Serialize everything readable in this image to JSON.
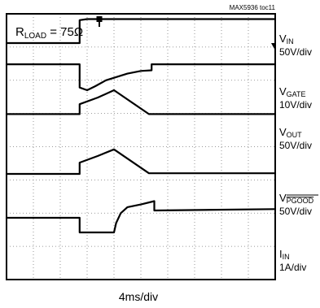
{
  "figure_id": "MAX5936 toc11",
  "load_label": {
    "main": "R",
    "sub": "LOAD",
    "rest": " = 75Ω"
  },
  "xlabel": "4ms/div",
  "chart_data": {
    "type": "line",
    "grid": true,
    "x_divisions": 10,
    "y_divisions": 8,
    "x_unit_per_div": "4ms/div",
    "series": [
      {
        "label_main": "V",
        "label_sub": "IN",
        "label_overline": false,
        "scale": "50V/div",
        "points": [
          [
            0,
            0.88
          ],
          [
            2.72,
            0.88
          ],
          [
            2.72,
            0.19
          ],
          [
            3.0,
            0.16
          ],
          [
            10,
            0.16
          ]
        ]
      },
      {
        "label_main": "V",
        "label_sub": "GATE",
        "label_overline": false,
        "scale": "10V/div",
        "points": [
          [
            0,
            1.52
          ],
          [
            2.72,
            1.52
          ],
          [
            2.72,
            2.22
          ],
          [
            3.0,
            2.3
          ],
          [
            3.3,
            2.18
          ],
          [
            3.7,
            2.0
          ],
          [
            4.1,
            1.9
          ],
          [
            4.5,
            1.8
          ],
          [
            5.0,
            1.72
          ],
          [
            5.4,
            1.7
          ],
          [
            5.4,
            1.52
          ],
          [
            10,
            1.52
          ]
        ]
      },
      {
        "label_main": "V",
        "label_sub": "OUT",
        "label_overline": false,
        "scale": "50V/div",
        "points": [
          [
            0,
            3.02
          ],
          [
            2.72,
            3.02
          ],
          [
            2.72,
            2.72
          ],
          [
            3.4,
            2.52
          ],
          [
            4.0,
            2.3
          ],
          [
            5.3,
            3.02
          ],
          [
            10,
            3.02
          ]
        ]
      },
      {
        "label_main": "V",
        "label_sub": "PGOOD",
        "label_overline": true,
        "scale": "50V/div",
        "points": [
          [
            0,
            4.82
          ],
          [
            2.72,
            4.82
          ],
          [
            2.72,
            4.48
          ],
          [
            3.4,
            4.28
          ],
          [
            4.0,
            4.08
          ],
          [
            5.3,
            4.8
          ],
          [
            10,
            4.8
          ]
        ]
      },
      {
        "label_main": "I",
        "label_sub": "IN",
        "label_overline": false,
        "scale": "1A/div",
        "points": [
          [
            0,
            6.14
          ],
          [
            2.72,
            6.14
          ],
          [
            2.72,
            6.58
          ],
          [
            4.0,
            6.58
          ],
          [
            4.08,
            6.3
          ],
          [
            4.25,
            6.0
          ],
          [
            4.5,
            5.82
          ],
          [
            5.0,
            5.74
          ],
          [
            5.5,
            5.64
          ],
          [
            5.5,
            5.92
          ],
          [
            10,
            5.88
          ]
        ]
      }
    ]
  }
}
